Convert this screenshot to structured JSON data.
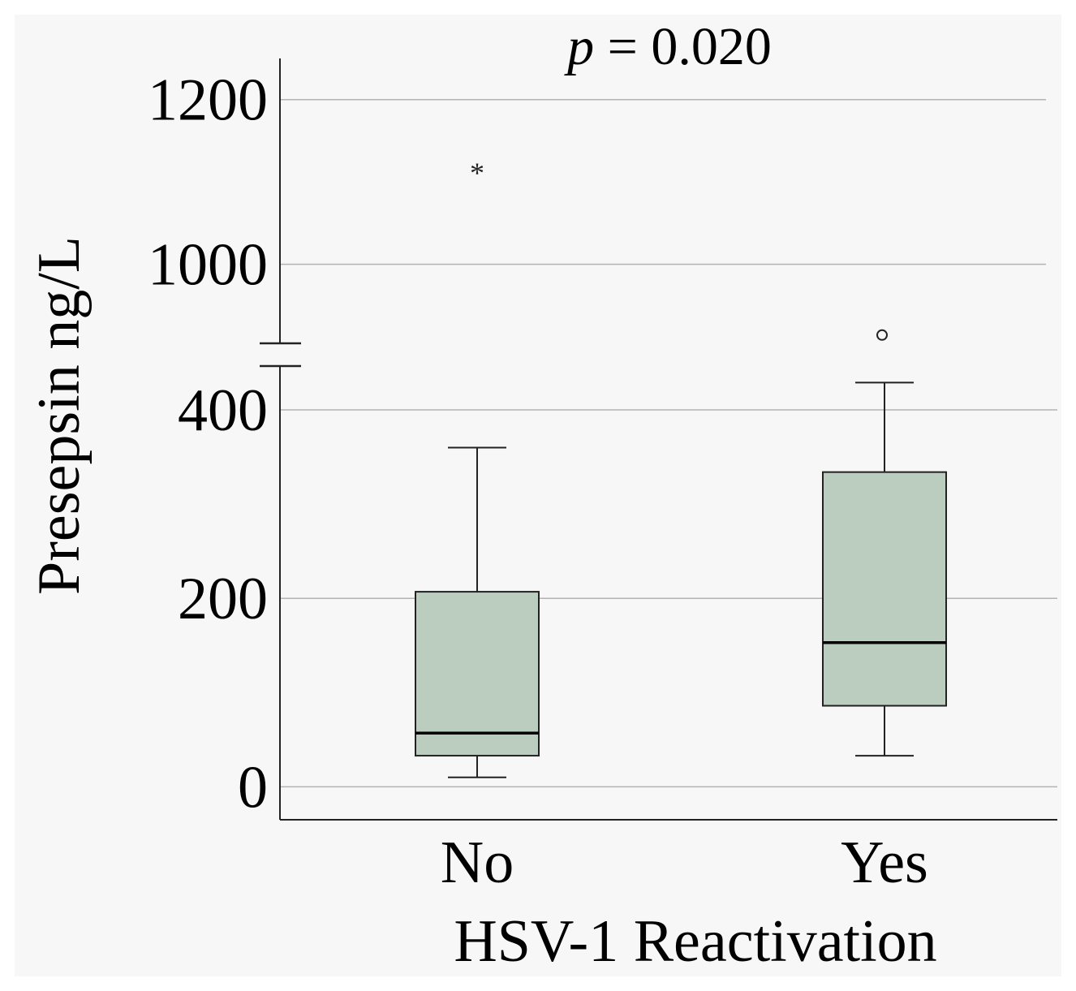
{
  "chart_data": {
    "type": "boxplot",
    "annotation": {
      "italic_part": "p",
      "rest": " = 0.020"
    },
    "ylabel": "Presepsin ng/L",
    "xlabel": "HSV-1 Reactivation",
    "categories": [
      "No",
      "Yes"
    ],
    "axis_break": {
      "from": 450,
      "to": 900
    },
    "lower_segment": {
      "ylim": [
        -35,
        450
      ],
      "ticks": [
        0,
        200,
        400
      ]
    },
    "upper_segment": {
      "ylim": [
        900,
        1250
      ],
      "ticks": [
        1000,
        1200
      ]
    },
    "series": [
      {
        "name": "No",
        "whisker_low": 10,
        "q1": 33,
        "median": 57,
        "q3": 207,
        "whisker_high": 360,
        "outliers": [
          {
            "value": 1115,
            "symbol": "*"
          }
        ]
      },
      {
        "name": "Yes",
        "whisker_low": 33,
        "q1": 86,
        "median": 153,
        "q3": 334,
        "whisker_high": 429,
        "outliers": [
          {
            "value": 914,
            "symbol": "o"
          }
        ]
      }
    ],
    "colors": {
      "box_fill": "#bacdbf",
      "grid": "#b3b3b3",
      "axis": "#222222",
      "text": "#000000"
    }
  }
}
